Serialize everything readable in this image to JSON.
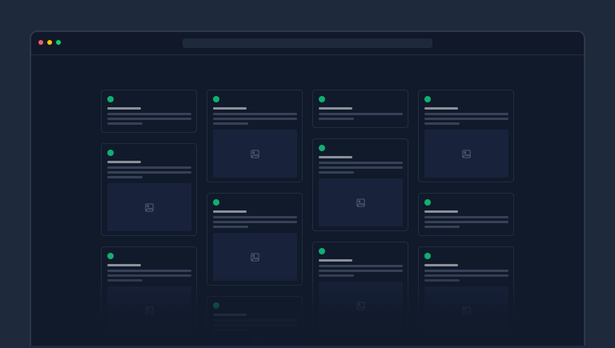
{
  "colors": {
    "background": "#1e2a3c",
    "window": "#111a2b",
    "status_dot": "#10b070",
    "traffic_red": "#f25f5c",
    "traffic_yellow": "#f5c400",
    "traffic_green": "#10d070",
    "title_bar": "#8a8f99",
    "text_line": "#364157"
  },
  "window": {
    "controls": [
      "close",
      "minimize",
      "maximize"
    ],
    "address_bar": ""
  },
  "columns": [
    [
      {
        "lines": 3,
        "image": false
      },
      {
        "lines": 3,
        "image": true
      },
      {
        "lines": 3,
        "image": true
      }
    ],
    [
      {
        "lines": 3,
        "image": true
      },
      {
        "lines": 3,
        "image": true
      },
      {
        "lines": 3,
        "image": true
      }
    ],
    [
      {
        "lines": 2,
        "image": false
      },
      {
        "lines": 3,
        "image": true
      },
      {
        "lines": 3,
        "image": true
      }
    ],
    [
      {
        "lines": 3,
        "image": true
      },
      {
        "lines": 3,
        "image": false
      },
      {
        "lines": 3,
        "image": true
      }
    ]
  ]
}
